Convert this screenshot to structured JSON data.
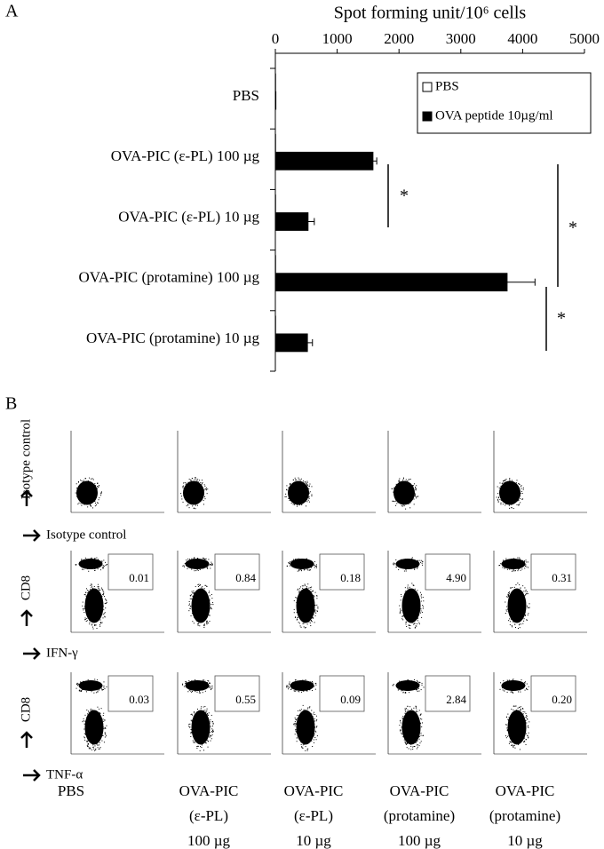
{
  "panel_labels": [
    "A",
    "B"
  ],
  "chart_data": {
    "type": "bar",
    "orientation": "horizontal",
    "x_label": "Spot forming unit/10⁶ cells",
    "categories": [
      "PBS",
      "OVA-PIC (ε-PL) 100 µg",
      "OVA-PIC (ε-PL) 10 µg",
      "OVA-PIC (protamine) 100 µg",
      "OVA-PIC (protamine) 10 µg"
    ],
    "series": [
      {
        "name": "PBS",
        "color": "#ffffff",
        "values": [
          5,
          5,
          5,
          5,
          5
        ]
      },
      {
        "name": "OVA peptide 10µg/ml",
        "color": "#000000",
        "values": [
          10,
          1580,
          530,
          3750,
          520
        ],
        "errors": [
          0,
          60,
          100,
          450,
          80
        ]
      }
    ],
    "xlim": [
      0,
      5000
    ],
    "xticks": [
      0,
      1000,
      2000,
      3000,
      4000,
      5000
    ],
    "legend": "upper-right",
    "annotations": [
      "*",
      "*",
      "*"
    ]
  },
  "panel_b": {
    "row_labels": [
      "Isotype control",
      "CD8",
      "CD8"
    ],
    "x_labels": [
      "Isotype control",
      "IFN-γ",
      "TNF-α"
    ],
    "gate_values": [
      [
        "0.01",
        "0.84",
        "0.18",
        "4.90",
        "0.31"
      ],
      [
        "0.03",
        "0.55",
        "0.09",
        "2.84",
        "0.20"
      ]
    ],
    "columns": [
      [
        "PBS"
      ],
      [
        "OVA-PIC",
        "(ε-PL)",
        "100 µg"
      ],
      [
        "OVA-PIC",
        "(ε-PL)",
        "10 µg"
      ],
      [
        "OVA-PIC",
        "(protamine)",
        "100 µg"
      ],
      [
        "OVA-PIC",
        "(protamine)",
        "10 µg"
      ]
    ]
  }
}
